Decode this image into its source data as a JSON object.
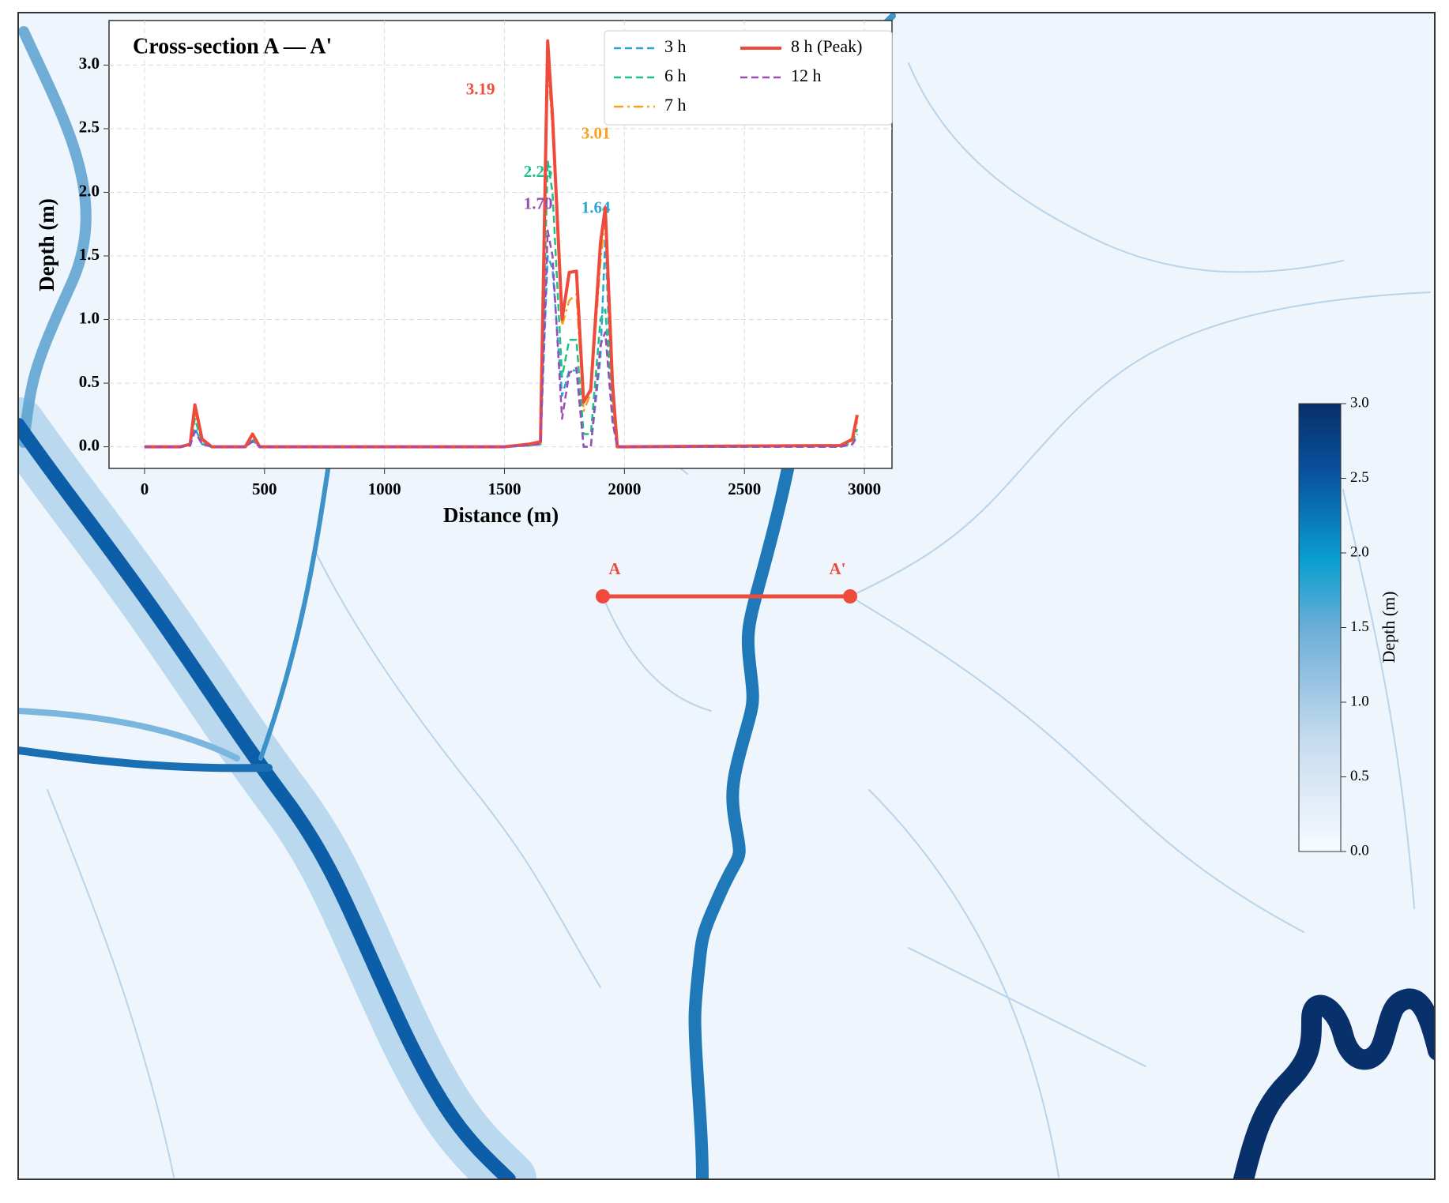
{
  "chart_data": {
    "type": "line",
    "title": "Cross-section A — A'",
    "x_label": "Distance (m)",
    "y_label": "Depth (m)",
    "x": [
      0,
      150,
      190,
      210,
      240,
      280,
      420,
      450,
      480,
      1000,
      1500,
      1600,
      1650,
      1680,
      1700,
      1740,
      1770,
      1800,
      1830,
      1860,
      1900,
      1920,
      1950,
      1970,
      2000,
      2900,
      2950,
      2970
    ],
    "xlim": [
      -148,
      3115
    ],
    "xticks": [
      0,
      500,
      1000,
      1500,
      2000,
      2500,
      3000
    ],
    "ylim": [
      -0.17,
      3.35
    ],
    "yticks": [
      {
        "value": 0,
        "label": "0.0"
      },
      0.5,
      {
        "value": 1,
        "label": "1.0"
      },
      1.5,
      {
        "value": 2,
        "label": "2.0"
      },
      2.5,
      {
        "value": 3,
        "label": "3.0"
      }
    ],
    "grid": true,
    "legend": "upper right",
    "series": [
      {
        "name": "3 h",
        "color": "#2aa6d6",
        "linestyle": "dashed",
        "values": [
          0,
          0,
          0.01,
          0.15,
          0.02,
          0,
          0,
          0.05,
          0,
          0,
          0,
          0.01,
          0.02,
          1.5,
          1.4,
          0.4,
          0.6,
          0.6,
          0,
          0,
          0.7,
          1.64,
          0.2,
          0,
          0,
          0,
          0.02,
          0.1
        ],
        "value_labels": [
          null,
          null,
          null,
          null,
          null,
          null,
          null,
          null,
          null,
          null,
          null,
          null,
          null,
          null,
          null,
          null,
          null,
          null,
          null,
          null,
          null,
          "1.64",
          null,
          null,
          null,
          null,
          null,
          null
        ]
      },
      {
        "name": "6 h",
        "color": "#1fc184",
        "linestyle": "dashed",
        "values": [
          0,
          0,
          0.01,
          0.22,
          0.03,
          0,
          0,
          0.07,
          0,
          0,
          0,
          0.01,
          0.02,
          2.25,
          2.0,
          0.55,
          0.84,
          0.84,
          0.1,
          0.1,
          1.0,
          1.08,
          0.3,
          0,
          0,
          0.01,
          0.03,
          0.14
        ],
        "value_labels": [
          null,
          null,
          null,
          null,
          null,
          null,
          null,
          null,
          null,
          null,
          null,
          null,
          null,
          "2.25",
          null,
          null,
          null,
          null,
          null,
          null,
          null,
          null,
          null,
          null,
          null,
          null,
          null,
          null
        ]
      },
      {
        "name": "7 h",
        "color": "#f5a21c",
        "linestyle": "dashdot",
        "values": [
          0,
          0,
          0.02,
          0.28,
          0.05,
          0,
          0,
          0.09,
          0,
          0,
          0,
          0.02,
          0.03,
          3.01,
          2.5,
          0.95,
          1.15,
          1.2,
          0.28,
          0.42,
          1.45,
          1.8,
          0.45,
          0,
          0,
          0.01,
          0.05,
          0.2
        ],
        "value_labels": [
          null,
          null,
          null,
          null,
          null,
          null,
          null,
          null,
          null,
          null,
          null,
          null,
          null,
          "3.01",
          null,
          null,
          null,
          null,
          null,
          null,
          null,
          null,
          null,
          null,
          null,
          null,
          null,
          null
        ]
      },
      {
        "name": "8 h (Peak)",
        "color": "#ef4b3c",
        "linestyle": "solid",
        "values": [
          0,
          0,
          0.02,
          0.33,
          0.06,
          0,
          0,
          0.1,
          0,
          0,
          0,
          0.02,
          0.04,
          3.19,
          2.6,
          1.0,
          1.37,
          1.38,
          0.35,
          0.45,
          1.6,
          1.88,
          0.5,
          0,
          0,
          0.01,
          0.06,
          0.25
        ],
        "value_labels": [
          null,
          null,
          null,
          null,
          null,
          null,
          null,
          null,
          null,
          null,
          null,
          null,
          null,
          "3.19",
          null,
          null,
          null,
          null,
          null,
          null,
          null,
          null,
          null,
          null,
          null,
          null,
          null,
          null
        ]
      },
      {
        "name": "12 h",
        "color": "#9b4db5",
        "linestyle": "dashed",
        "values": [
          0,
          0,
          0.01,
          0.12,
          0.02,
          0,
          0,
          0.04,
          0,
          0,
          0,
          0.01,
          0.02,
          1.7,
          1.5,
          0.22,
          0.58,
          0.62,
          0,
          0,
          0.8,
          0.9,
          0.2,
          0,
          0,
          0,
          0.02,
          0.08
        ],
        "value_labels": [
          null,
          null,
          null,
          null,
          null,
          null,
          null,
          null,
          null,
          null,
          null,
          null,
          null,
          "1.70",
          null,
          null,
          null,
          null,
          null,
          null,
          null,
          null,
          null,
          null,
          null,
          null,
          null,
          null
        ]
      }
    ]
  },
  "map": {
    "section_start": "A",
    "section_end": "A'",
    "colorbar": {
      "label": "Depth (m)",
      "lim": [
        0,
        3
      ],
      "ticks": [
        {
          "value": 0,
          "label": "0.0"
        },
        0.5,
        {
          "value": 1,
          "label": "1.0"
        },
        1.5,
        {
          "value": 2,
          "label": "2.0"
        },
        2.5,
        {
          "value": 3,
          "label": "3.0"
        }
      ]
    }
  }
}
